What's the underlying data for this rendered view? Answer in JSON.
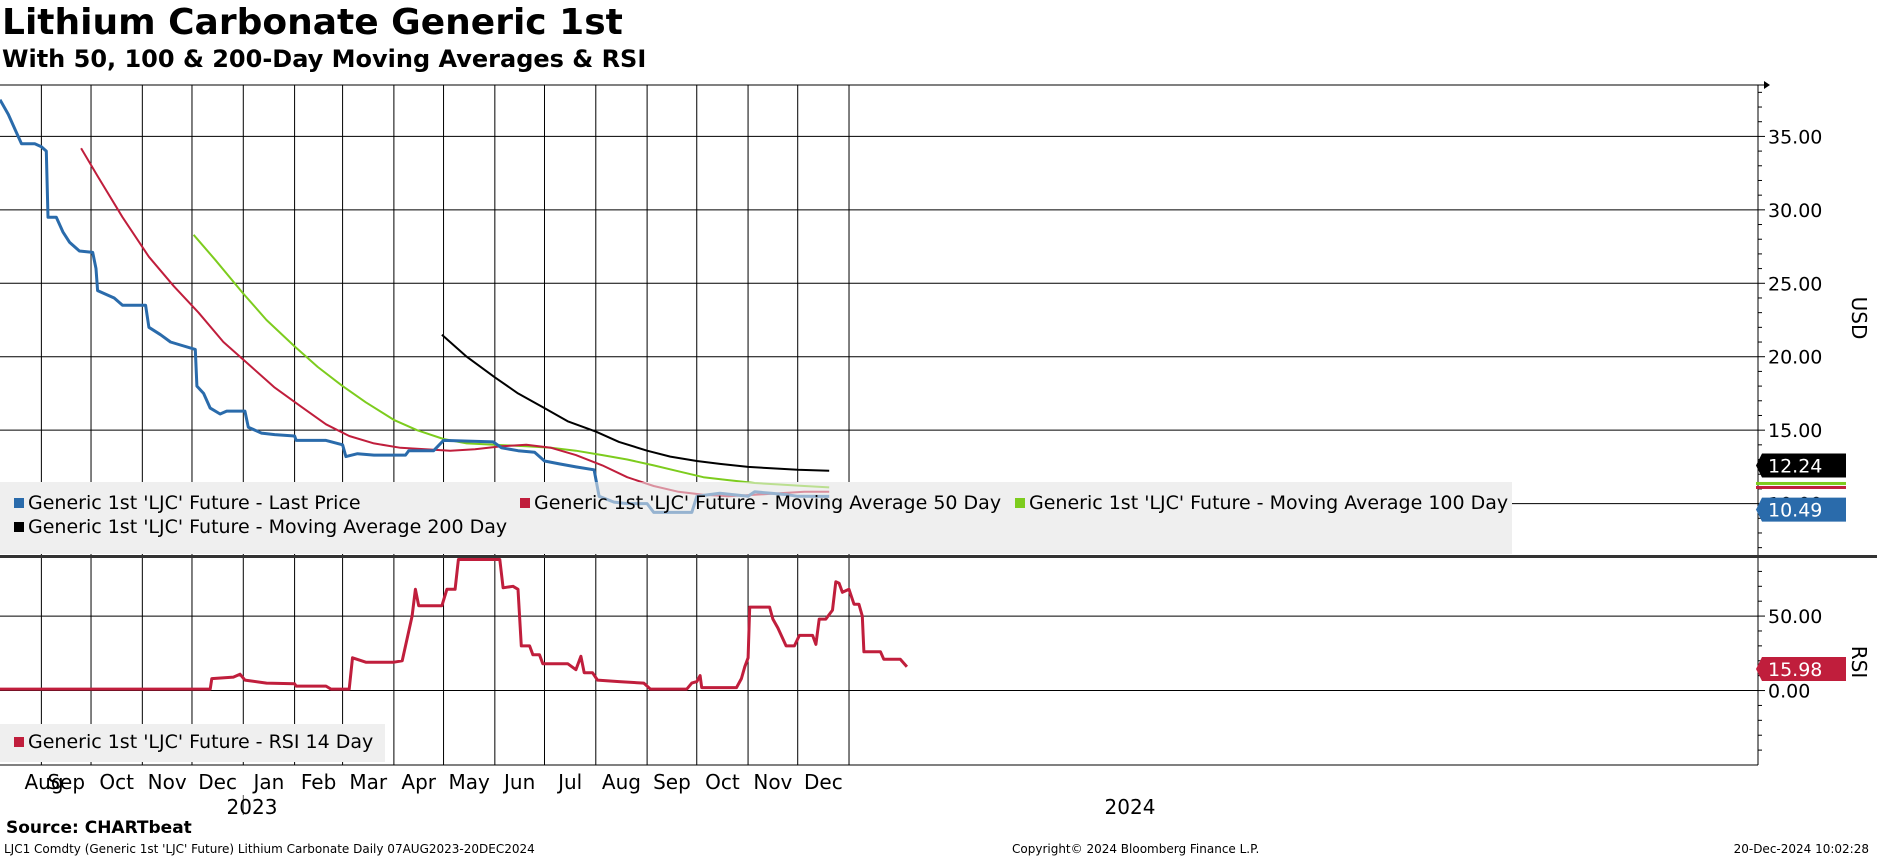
{
  "header": {
    "title": "Lithium Carbonate Generic 1st",
    "subtitle": "With 50, 100 & 200-Day Moving Averages & RSI"
  },
  "footer": {
    "source": "Source: CHARTbeat",
    "ticker_line": "LJC1 Comdty (Generic 1st 'LJC' Future) Lithium Carbonate  Daily 07AUG2023-20DEC2024",
    "copyright": "Copyright© 2024 Bloomberg Finance L.P.",
    "timestamp": "20-Dec-2024 10:02:28"
  },
  "colors": {
    "last_price": "#2a6bab",
    "ma50": "#c01e3c",
    "ma100": "#7dcc1e",
    "ma200": "#000000",
    "rsi": "#c01e3c",
    "grid": "#000000",
    "legend_bg": "#efefef"
  },
  "chart_data": [
    {
      "type": "line",
      "panel": "price",
      "ylabel": "USD",
      "ylim": [
        6.5,
        38.5
      ],
      "yticks": [
        10,
        15,
        20,
        25,
        30,
        35
      ],
      "ytick_labels": [
        "10.00",
        "15.00",
        "20.00",
        "25.00",
        "30.00",
        "35.00"
      ],
      "grid": true,
      "legend": "bottom-left",
      "x_range": [
        "2023-08-07",
        "2024-12-20"
      ],
      "x_month_labels": [
        "Aug",
        "Sep",
        "Oct",
        "Nov",
        "Dec",
        "Jan",
        "Feb",
        "Mar",
        "Apr",
        "May",
        "Jun",
        "Jul",
        "Aug",
        "Sep",
        "Oct",
        "Nov",
        "Dec"
      ],
      "x_year_labels": [
        "2023",
        "2024"
      ],
      "last_value_labels": {
        "ma200": "12.24",
        "last_price": "10.49"
      },
      "series": [
        {
          "name": "Generic 1st 'LJC' Future - Last Price",
          "key": "last_price",
          "points": [
            [
              "2023-08-07",
              37.5
            ],
            [
              "2023-08-12",
              36.5
            ],
            [
              "2023-08-16",
              35.5
            ],
            [
              "2023-08-20",
              34.5
            ],
            [
              "2023-08-28",
              34.5
            ],
            [
              "2023-09-01",
              34.3
            ],
            [
              "2023-09-04",
              34.0
            ],
            [
              "2023-09-05",
              29.5
            ],
            [
              "2023-09-10",
              29.5
            ],
            [
              "2023-09-14",
              28.5
            ],
            [
              "2023-09-18",
              27.8
            ],
            [
              "2023-09-24",
              27.2
            ],
            [
              "2023-10-02",
              27.1
            ],
            [
              "2023-10-04",
              26.0
            ],
            [
              "2023-10-05",
              24.5
            ],
            [
              "2023-10-15",
              24.0
            ],
            [
              "2023-10-20",
              23.5
            ],
            [
              "2023-11-03",
              23.5
            ],
            [
              "2023-11-05",
              22.0
            ],
            [
              "2023-11-12",
              21.5
            ],
            [
              "2023-11-18",
              21.0
            ],
            [
              "2023-11-24",
              20.8
            ],
            [
              "2023-12-03",
              20.5
            ],
            [
              "2023-12-04",
              18.0
            ],
            [
              "2023-12-08",
              17.5
            ],
            [
              "2023-12-12",
              16.5
            ],
            [
              "2023-12-18",
              16.1
            ],
            [
              "2023-12-22",
              16.3
            ],
            [
              "2024-01-02",
              16.3
            ],
            [
              "2024-01-04",
              15.2
            ],
            [
              "2024-01-12",
              14.8
            ],
            [
              "2024-01-20",
              14.7
            ],
            [
              "2024-02-01",
              14.6
            ],
            [
              "2024-02-02",
              14.3
            ],
            [
              "2024-02-20",
              14.3
            ],
            [
              "2024-03-01",
              14.0
            ],
            [
              "2024-03-03",
              13.2
            ],
            [
              "2024-03-10",
              13.4
            ],
            [
              "2024-03-20",
              13.3
            ],
            [
              "2024-04-08",
              13.3
            ],
            [
              "2024-04-10",
              13.6
            ],
            [
              "2024-04-25",
              13.6
            ],
            [
              "2024-05-01",
              14.3
            ],
            [
              "2024-05-31",
              14.2
            ],
            [
              "2024-06-05",
              13.8
            ],
            [
              "2024-06-15",
              13.6
            ],
            [
              "2024-06-25",
              13.5
            ],
            [
              "2024-07-01",
              12.9
            ],
            [
              "2024-07-10",
              12.7
            ],
            [
              "2024-07-20",
              12.5
            ],
            [
              "2024-07-31",
              12.3
            ],
            [
              "2024-08-03",
              10.5
            ],
            [
              "2024-08-12",
              10.1
            ],
            [
              "2024-08-20",
              10.0
            ],
            [
              "2024-09-01",
              10.0
            ],
            [
              "2024-09-05",
              9.4
            ],
            [
              "2024-09-15",
              9.4
            ],
            [
              "2024-09-28",
              9.4
            ],
            [
              "2024-10-01",
              10.5
            ],
            [
              "2024-10-15",
              10.7
            ],
            [
              "2024-11-01",
              10.5
            ],
            [
              "2024-11-05",
              10.8
            ],
            [
              "2024-11-15",
              10.7
            ],
            [
              "2024-11-25",
              10.6
            ],
            [
              "2024-12-01",
              10.5
            ],
            [
              "2024-12-20",
              10.49
            ]
          ]
        },
        {
          "name": "Generic 1st 'LJC' Future - Moving Average 50 Day",
          "key": "ma50",
          "points": [
            [
              "2023-09-25",
              34.2
            ],
            [
              "2023-10-05",
              32.3
            ],
            [
              "2023-10-20",
              29.5
            ],
            [
              "2023-11-05",
              26.8
            ],
            [
              "2023-11-20",
              24.8
            ],
            [
              "2023-12-05",
              23.0
            ],
            [
              "2023-12-20",
              21.0
            ],
            [
              "2024-01-05",
              19.4
            ],
            [
              "2024-01-20",
              17.9
            ],
            [
              "2024-02-05",
              16.6
            ],
            [
              "2024-02-20",
              15.4
            ],
            [
              "2024-03-05",
              14.6
            ],
            [
              "2024-03-20",
              14.1
            ],
            [
              "2024-04-05",
              13.8
            ],
            [
              "2024-04-20",
              13.7
            ],
            [
              "2024-05-05",
              13.6
            ],
            [
              "2024-05-20",
              13.7
            ],
            [
              "2024-06-05",
              13.9
            ],
            [
              "2024-06-20",
              14.0
            ],
            [
              "2024-07-05",
              13.8
            ],
            [
              "2024-07-20",
              13.3
            ],
            [
              "2024-08-05",
              12.6
            ],
            [
              "2024-08-20",
              11.8
            ],
            [
              "2024-09-05",
              11.2
            ],
            [
              "2024-09-20",
              10.8
            ],
            [
              "2024-10-05",
              10.6
            ],
            [
              "2024-10-20",
              10.5
            ],
            [
              "2024-11-05",
              10.6
            ],
            [
              "2024-11-20",
              10.7
            ],
            [
              "2024-12-05",
              10.8
            ],
            [
              "2024-12-20",
              10.8
            ]
          ]
        },
        {
          "name": "Generic 1st 'LJC' Future - Moving Average 100 Day",
          "key": "ma100",
          "points": [
            [
              "2023-12-02",
              28.3
            ],
            [
              "2023-12-15",
              26.6
            ],
            [
              "2024-01-01",
              24.3
            ],
            [
              "2024-01-15",
              22.5
            ],
            [
              "2024-02-01",
              20.7
            ],
            [
              "2024-02-15",
              19.3
            ],
            [
              "2024-03-01",
              18.0
            ],
            [
              "2024-03-15",
              16.9
            ],
            [
              "2024-04-01",
              15.7
            ],
            [
              "2024-04-15",
              15.0
            ],
            [
              "2024-05-01",
              14.4
            ],
            [
              "2024-05-15",
              14.1
            ],
            [
              "2024-06-01",
              14.0
            ],
            [
              "2024-06-20",
              13.9
            ],
            [
              "2024-07-05",
              13.8
            ],
            [
              "2024-07-20",
              13.6
            ],
            [
              "2024-08-05",
              13.3
            ],
            [
              "2024-08-20",
              13.0
            ],
            [
              "2024-09-05",
              12.6
            ],
            [
              "2024-09-20",
              12.2
            ],
            [
              "2024-10-05",
              11.8
            ],
            [
              "2024-10-20",
              11.6
            ],
            [
              "2024-11-05",
              11.4
            ],
            [
              "2024-11-20",
              11.3
            ],
            [
              "2024-12-05",
              11.2
            ],
            [
              "2024-12-20",
              11.1
            ]
          ]
        },
        {
          "name": "Generic 1st 'LJC' Future - Moving Average 200 Day",
          "key": "ma200",
          "points": [
            [
              "2024-04-30",
              21.5
            ],
            [
              "2024-05-15",
              20.0
            ],
            [
              "2024-06-01",
              18.6
            ],
            [
              "2024-06-15",
              17.5
            ],
            [
              "2024-07-01",
              16.5
            ],
            [
              "2024-07-15",
              15.6
            ],
            [
              "2024-08-01",
              14.9
            ],
            [
              "2024-08-15",
              14.2
            ],
            [
              "2024-09-01",
              13.6
            ],
            [
              "2024-09-15",
              13.2
            ],
            [
              "2024-10-01",
              12.9
            ],
            [
              "2024-10-15",
              12.7
            ],
            [
              "2024-11-01",
              12.5
            ],
            [
              "2024-11-15",
              12.4
            ],
            [
              "2024-12-01",
              12.3
            ],
            [
              "2024-12-20",
              12.24
            ]
          ]
        }
      ]
    },
    {
      "type": "line",
      "panel": "rsi",
      "ylabel": "RSI",
      "ylim": [
        -50,
        89
      ],
      "yticks": [
        0,
        50
      ],
      "ytick_labels": [
        "0.00",
        "50.00"
      ],
      "grid": true,
      "legend": "bottom-left",
      "last_value_labels": {
        "rsi": "15.98"
      },
      "series": [
        {
          "name": "Generic 1st 'LJC' Future - RSI 14 Day",
          "key": "rsi",
          "points": [
            [
              "2023-08-07",
              1.0
            ],
            [
              "2023-12-12",
              1.0
            ],
            [
              "2023-12-13",
              8.0
            ],
            [
              "2023-12-26",
              9.0
            ],
            [
              "2023-12-30",
              11.0
            ],
            [
              "2024-01-02",
              7.0
            ],
            [
              "2024-01-15",
              5.0
            ],
            [
              "2024-02-01",
              4.5
            ],
            [
              "2024-02-02",
              3.0
            ],
            [
              "2024-02-20",
              3.0
            ],
            [
              "2024-02-23",
              1.0
            ],
            [
              "2024-03-05",
              1.0
            ],
            [
              "2024-03-07",
              22.0
            ],
            [
              "2024-03-15",
              19.0
            ],
            [
              "2024-04-01",
              19.0
            ],
            [
              "2024-04-06",
              20.0
            ],
            [
              "2024-04-12",
              50.0
            ],
            [
              "2024-04-14",
              68.0
            ],
            [
              "2024-04-16",
              57.0
            ],
            [
              "2024-04-30",
              57.0
            ],
            [
              "2024-05-03",
              68.0
            ],
            [
              "2024-05-08",
              68.0
            ],
            [
              "2024-05-10",
              88.0
            ],
            [
              "2024-06-04",
              88.0
            ],
            [
              "2024-06-06",
              69.0
            ],
            [
              "2024-06-12",
              70.0
            ],
            [
              "2024-06-15",
              68.0
            ],
            [
              "2024-06-17",
              30.0
            ],
            [
              "2024-06-22",
              30.0
            ],
            [
              "2024-06-24",
              24.0
            ],
            [
              "2024-06-28",
              24.0
            ],
            [
              "2024-06-30",
              18.0
            ],
            [
              "2024-07-15",
              18.0
            ],
            [
              "2024-07-20",
              14.0
            ],
            [
              "2024-07-23",
              23.0
            ],
            [
              "2024-07-25",
              12.0
            ],
            [
              "2024-07-30",
              12.0
            ],
            [
              "2024-08-02",
              7.0
            ],
            [
              "2024-08-15",
              6.0
            ],
            [
              "2024-08-30",
              5.0
            ],
            [
              "2024-09-03",
              1.0
            ],
            [
              "2024-09-25",
              1.0
            ],
            [
              "2024-09-28",
              5.0
            ],
            [
              "2024-10-01",
              6.0
            ],
            [
              "2024-10-03",
              10.0
            ],
            [
              "2024-10-04",
              2.0
            ],
            [
              "2024-10-10",
              2.0
            ],
            [
              "2024-10-20",
              2.0
            ],
            [
              "2024-10-25",
              2.0
            ],
            [
              "2024-10-28",
              8.0
            ],
            [
              "2024-10-30",
              16.0
            ],
            [
              "2024-11-01",
              22.0
            ],
            [
              "2024-11-02",
              56.0
            ],
            [
              "2024-11-14",
              56.0
            ],
            [
              "2024-11-16",
              48.0
            ],
            [
              "2024-11-19",
              42.0
            ],
            [
              "2024-11-24",
              30.0
            ],
            [
              "2024-11-29",
              30.0
            ],
            [
              "2024-12-02",
              37.0
            ],
            [
              "2024-12-10",
              37.0
            ],
            [
              "2024-12-12",
              31.0
            ],
            [
              "2024-12-14",
              48.0
            ],
            [
              "2024-12-18",
              48.0
            ],
            [
              "2024-12-22",
              54.0
            ],
            [
              "2024-12-24",
              73.0
            ],
            [
              "2024-12-26",
              72.0
            ],
            [
              "2024-12-28",
              66.0
            ],
            [
              "2025-01-01",
              68.0
            ],
            [
              "2025-01-04",
              58.0
            ],
            [
              "2025-01-07",
              58.0
            ],
            [
              "2025-01-09",
              50.0
            ],
            [
              "2025-01-10",
              26.0
            ],
            [
              "2025-01-20",
              26.0
            ],
            [
              "2025-01-22",
              21.0
            ],
            [
              "2025-02-01",
              21.0
            ],
            [
              "2025-02-05",
              15.98
            ]
          ]
        }
      ]
    }
  ]
}
